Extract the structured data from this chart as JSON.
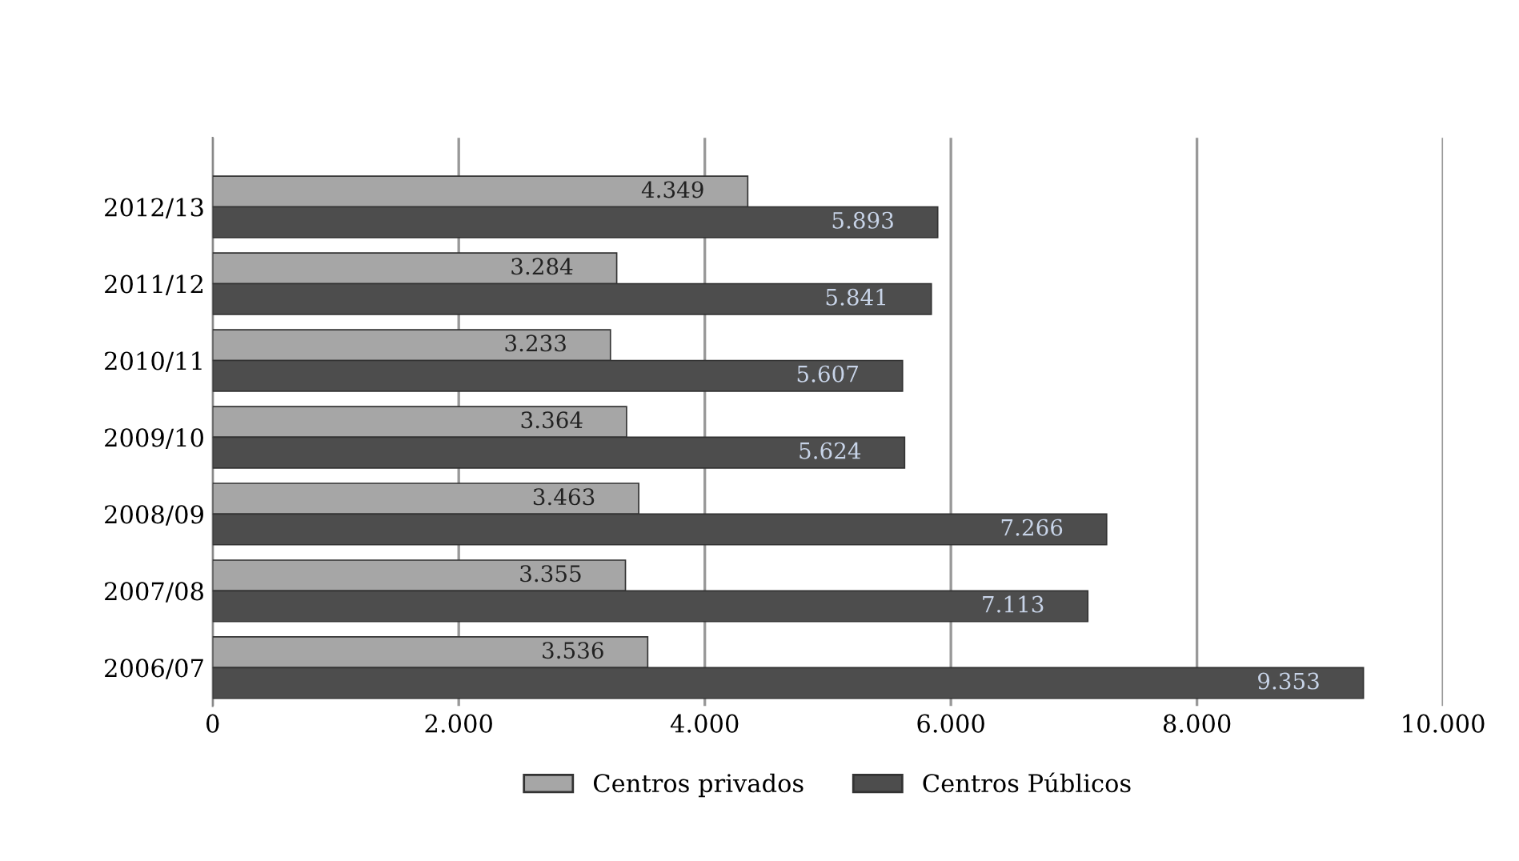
{
  "chart_data": {
    "type": "bar",
    "orientation": "horizontal",
    "categories": [
      "2012/13",
      "2011/12",
      "2010/11",
      "2009/10",
      "2008/09",
      "2007/08",
      "2006/07"
    ],
    "series": [
      {
        "name": "Centros privados",
        "color": "#a6a6a6",
        "values": [
          4349,
          3284,
          3233,
          3364,
          3463,
          3355,
          3536
        ],
        "value_labels": [
          "4.349",
          "3.284",
          "3.233",
          "3.364",
          "3.463",
          "3.355",
          "3.536"
        ]
      },
      {
        "name": "Centros Públicos",
        "color": "#4d4d4d",
        "values": [
          5893,
          5841,
          5607,
          5624,
          7266,
          7113,
          9353
        ],
        "value_labels": [
          "5.893",
          "5.841",
          "5.607",
          "5.624",
          "7.266",
          "7.113",
          "9.353"
        ]
      }
    ],
    "xlim": [
      0,
      10000
    ],
    "xticks": [
      {
        "value": 0,
        "label": "0"
      },
      {
        "value": 2000,
        "label": "2.000"
      },
      {
        "value": 4000,
        "label": "4.000"
      },
      {
        "value": 6000,
        "label": "6.000"
      },
      {
        "value": 8000,
        "label": "8.000"
      },
      {
        "value": 10000,
        "label": "10.000"
      }
    ],
    "grid": "x",
    "legend": "bottom"
  }
}
